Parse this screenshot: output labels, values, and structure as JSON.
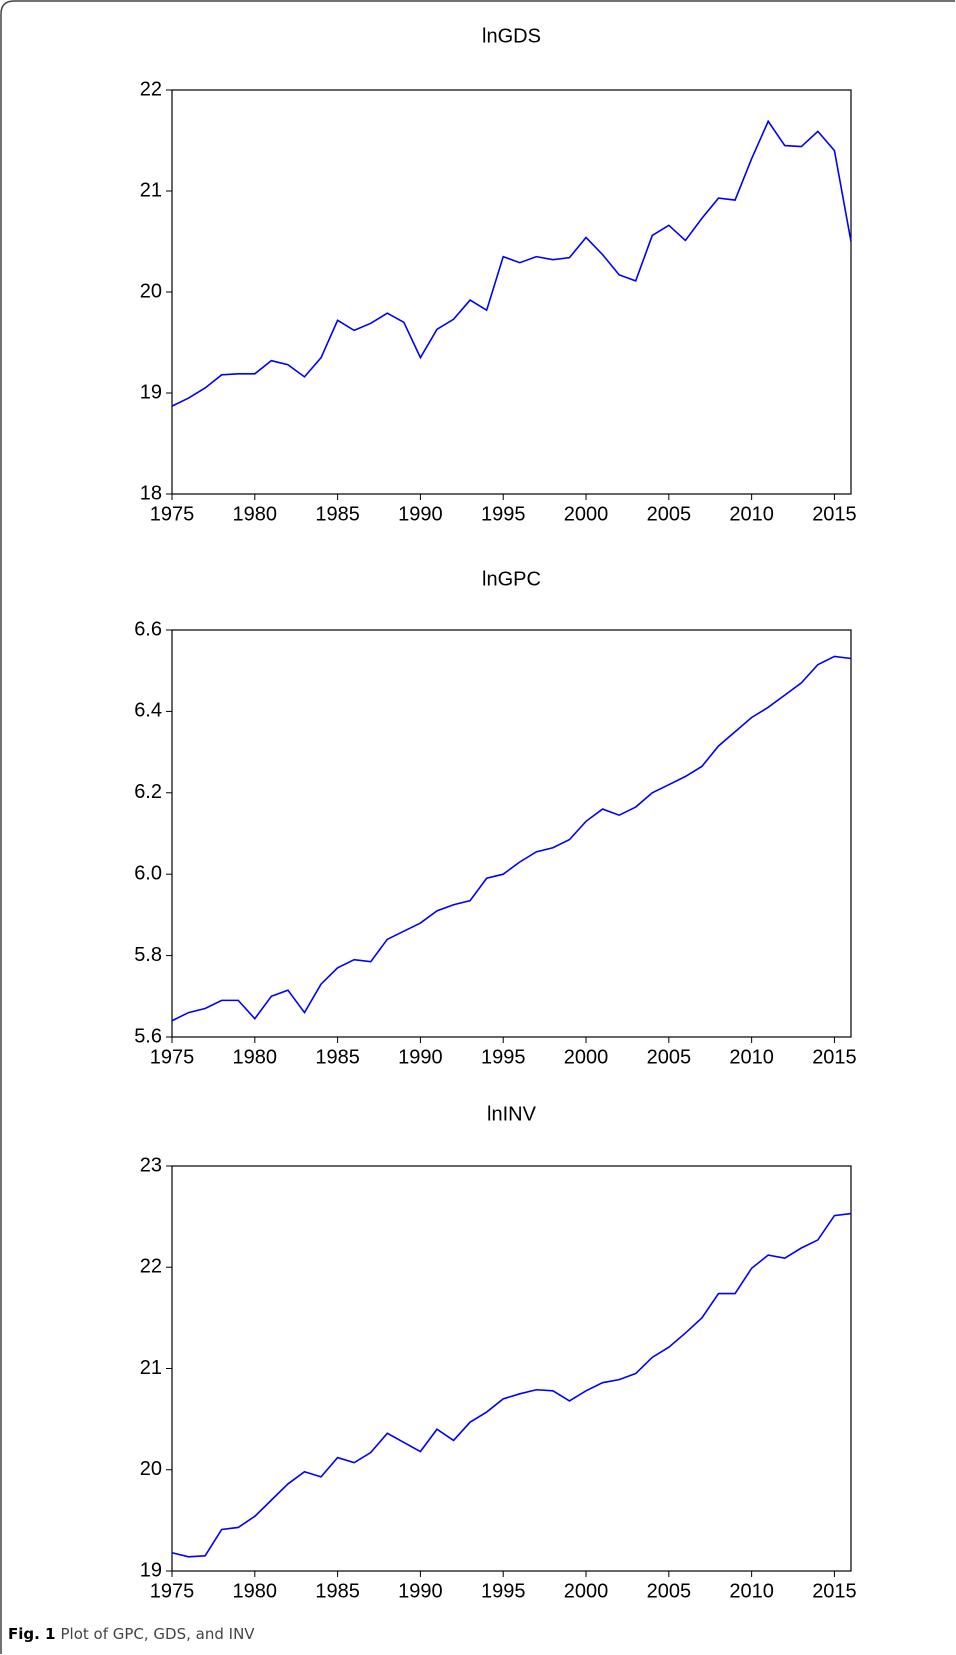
{
  "chart_data": [
    {
      "type": "line",
      "title": "lnGDS",
      "color": "#0000ff",
      "x": [
        1975,
        1976,
        1977,
        1978,
        1979,
        1980,
        1981,
        1982,
        1983,
        1984,
        1985,
        1986,
        1987,
        1988,
        1989,
        1990,
        1991,
        1992,
        1993,
        1994,
        1995,
        1996,
        1997,
        1998,
        1999,
        2000,
        2001,
        2002,
        2003,
        2004,
        2005,
        2006,
        2007,
        2008,
        2009,
        2010,
        2011,
        2012,
        2013,
        2014,
        2015,
        2016
      ],
      "values": [
        18.87,
        18.95,
        19.05,
        19.18,
        19.19,
        19.19,
        19.32,
        19.28,
        19.16,
        19.35,
        19.72,
        19.62,
        19.69,
        19.79,
        19.7,
        19.35,
        19.63,
        19.73,
        19.92,
        19.82,
        20.35,
        20.29,
        20.35,
        20.32,
        20.34,
        20.54,
        20.37,
        20.17,
        20.11,
        20.56,
        20.66,
        20.51,
        20.73,
        20.93,
        20.91,
        21.32,
        21.69,
        21.45,
        21.44,
        21.59,
        21.4,
        20.5
      ],
      "xlim": [
        1975,
        2016
      ],
      "xticks": [
        1975,
        1980,
        1985,
        1990,
        1995,
        2000,
        2005,
        2010,
        2015
      ],
      "ylim": [
        18,
        22
      ],
      "yticks": [
        18,
        19,
        20,
        21,
        22
      ]
    },
    {
      "type": "line",
      "title": "lnGPC",
      "color": "#0000ff",
      "x": [
        1975,
        1976,
        1977,
        1978,
        1979,
        1980,
        1981,
        1982,
        1983,
        1984,
        1985,
        1986,
        1987,
        1988,
        1989,
        1990,
        1991,
        1992,
        1993,
        1994,
        1995,
        1996,
        1997,
        1998,
        1999,
        2000,
        2001,
        2002,
        2003,
        2004,
        2005,
        2006,
        2007,
        2008,
        2009,
        2010,
        2011,
        2012,
        2013,
        2014,
        2015,
        2016
      ],
      "values": [
        5.64,
        5.66,
        5.67,
        5.69,
        5.69,
        5.645,
        5.7,
        5.715,
        5.66,
        5.73,
        5.77,
        5.79,
        5.785,
        5.84,
        5.86,
        5.88,
        5.91,
        5.925,
        5.935,
        5.99,
        6.0,
        6.03,
        6.055,
        6.065,
        6.085,
        6.13,
        6.16,
        6.145,
        6.165,
        6.2,
        6.22,
        6.24,
        6.265,
        6.315,
        6.35,
        6.385,
        6.41,
        6.44,
        6.47,
        6.515,
        6.535,
        6.53
      ],
      "xlim": [
        1975,
        2016
      ],
      "xticks": [
        1975,
        1980,
        1985,
        1990,
        1995,
        2000,
        2005,
        2010,
        2015
      ],
      "ylim": [
        5.6,
        6.6
      ],
      "yticks": [
        5.6,
        5.8,
        {
          "value": 6,
          "label": "6.0"
        },
        6.2,
        6.4,
        6.6
      ]
    },
    {
      "type": "line",
      "title": "lnINV",
      "color": "#0000ff",
      "x": [
        1975,
        1976,
        1977,
        1978,
        1979,
        1980,
        1981,
        1982,
        1983,
        1984,
        1985,
        1986,
        1987,
        1988,
        1989,
        1990,
        1991,
        1992,
        1993,
        1994,
        1995,
        1996,
        1997,
        1998,
        1999,
        2000,
        2001,
        2002,
        2003,
        2004,
        2005,
        2006,
        2007,
        2008,
        2009,
        2010,
        2011,
        2012,
        2013,
        2014,
        2015,
        2016
      ],
      "values": [
        19.18,
        19.14,
        19.15,
        19.41,
        19.43,
        19.54,
        19.7,
        19.86,
        19.98,
        19.93,
        20.12,
        20.07,
        20.17,
        20.36,
        20.27,
        20.18,
        20.4,
        20.29,
        20.47,
        20.57,
        20.7,
        20.75,
        20.79,
        20.78,
        20.68,
        20.78,
        20.86,
        20.89,
        20.95,
        21.11,
        21.21,
        21.35,
        21.5,
        21.74,
        21.74,
        21.99,
        22.12,
        22.09,
        22.19,
        22.27,
        22.51,
        22.53
      ],
      "xlim": [
        1975,
        2016
      ],
      "xticks": [
        1975,
        1980,
        1985,
        1990,
        1995,
        2000,
        2005,
        2010,
        2015
      ],
      "ylim": [
        19,
        23
      ],
      "yticks": [
        19,
        20,
        21,
        22,
        23
      ]
    }
  ],
  "figure_label": "Fig. 1",
  "caption": "Plot of GPC, GDS, and INV"
}
